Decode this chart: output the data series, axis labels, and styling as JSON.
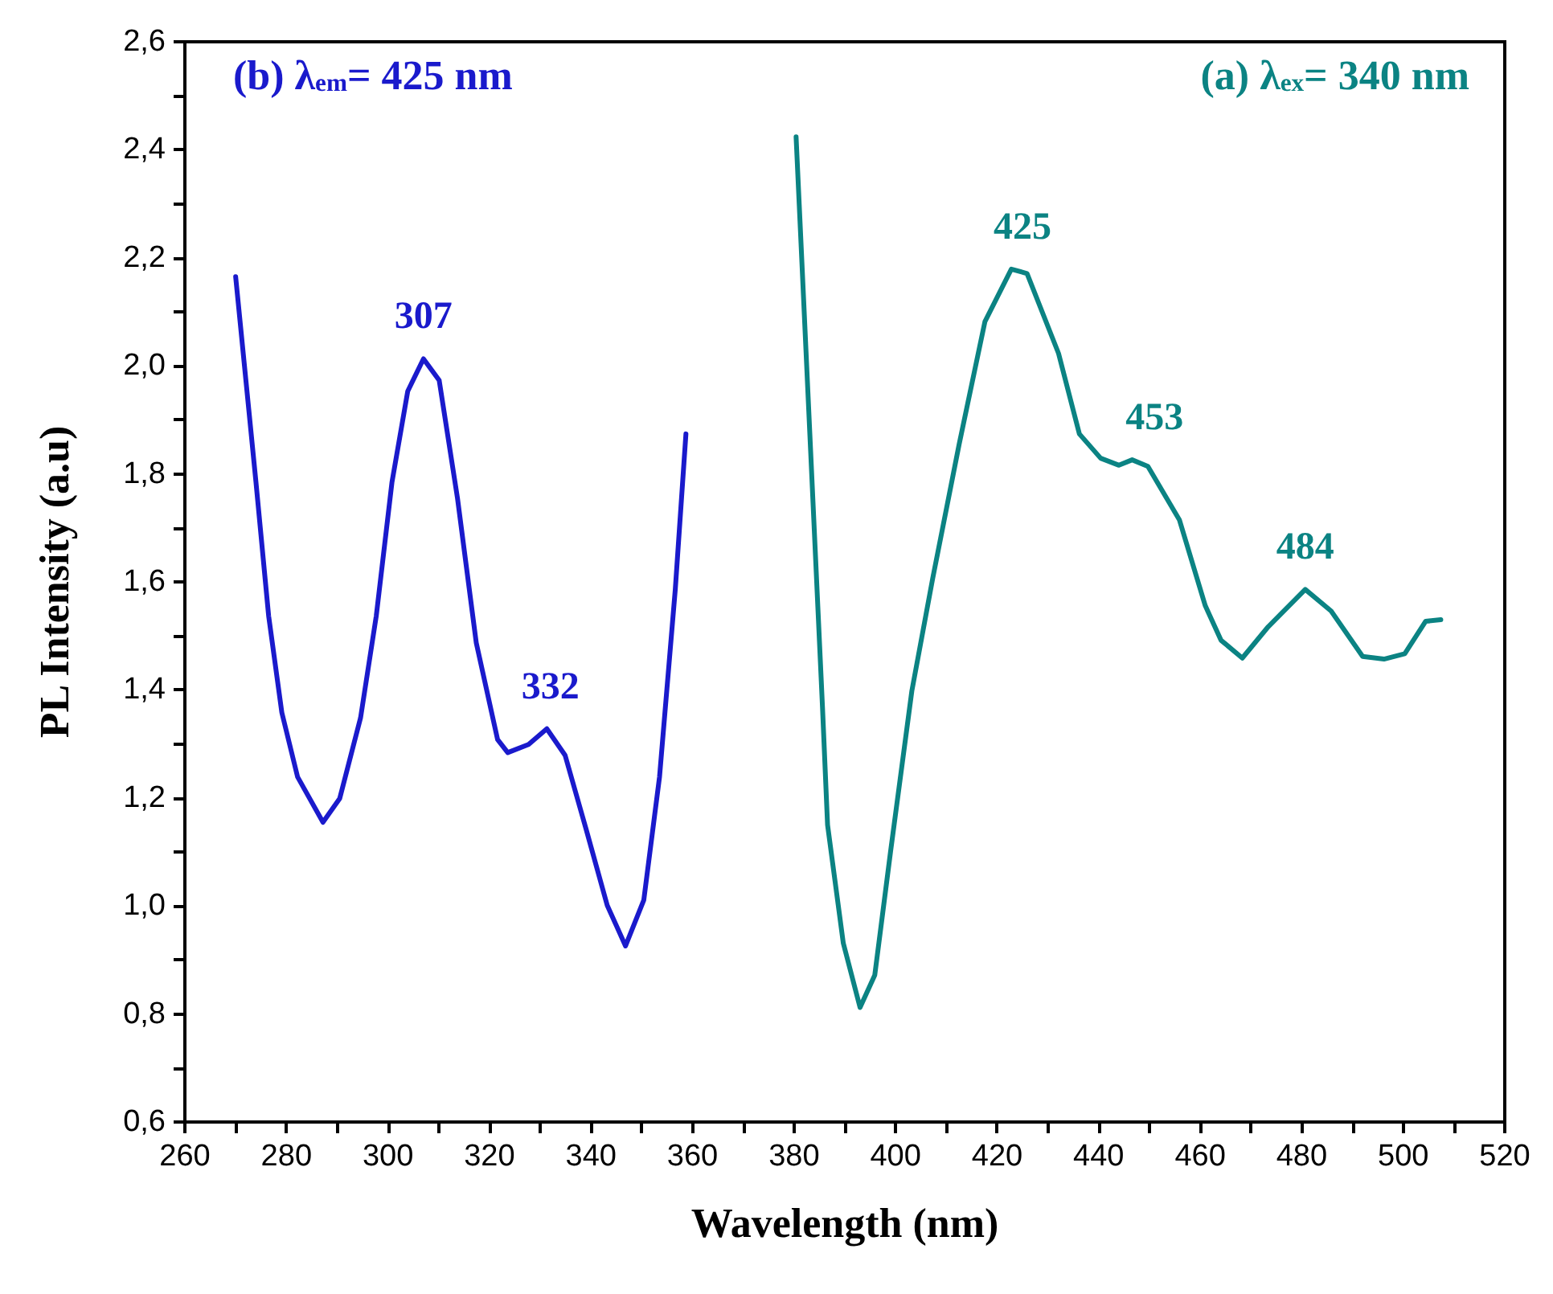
{
  "chart_data": {
    "type": "line",
    "xlabel": "Wavelength (nm)",
    "ylabel": "PL Intensity (a.u)",
    "xlim": [
      260,
      520
    ],
    "xticks": [
      260,
      {
        "value": 270,
        "label": null
      },
      280,
      {
        "value": 290,
        "label": null
      },
      300,
      {
        "value": 310,
        "label": null
      },
      320,
      {
        "value": 330,
        "label": null
      },
      340,
      {
        "value": 350,
        "label": null
      },
      360,
      {
        "value": 370,
        "label": null
      },
      380,
      {
        "value": 390,
        "label": null
      },
      400,
      {
        "value": 410,
        "label": null
      },
      420,
      {
        "value": 430,
        "label": null
      },
      440,
      {
        "value": 450,
        "label": null
      },
      460,
      {
        "value": 470,
        "label": null
      },
      480,
      {
        "value": 490,
        "label": null
      },
      500,
      {
        "value": 510,
        "label": null
      },
      520
    ],
    "ylim": [
      0.6,
      2.6
    ],
    "yticks": [
      {
        "value": 0.6,
        "label": "0,6"
      },
      {
        "value": 0.7,
        "label": null
      },
      {
        "value": 0.8,
        "label": "0,8"
      },
      {
        "value": 0.9,
        "label": null
      },
      {
        "value": 1.0,
        "label": "1,0"
      },
      {
        "value": 1.1,
        "label": null
      },
      {
        "value": 1.2,
        "label": "1,2"
      },
      {
        "value": 1.3,
        "label": null
      },
      {
        "value": 1.4,
        "label": "1,4"
      },
      {
        "value": 1.5,
        "label": null
      },
      {
        "value": 1.6,
        "label": "1,6"
      },
      {
        "value": 1.7,
        "label": null
      },
      {
        "value": 1.8,
        "label": "1,8"
      },
      {
        "value": 1.9,
        "label": null
      },
      {
        "value": 2.0,
        "label": "2,0"
      },
      {
        "value": 2.1,
        "label": null
      },
      {
        "value": 2.2,
        "label": "2,2"
      },
      {
        "value": 2.3,
        "label": null
      },
      {
        "value": 2.4,
        "label": "2,4"
      },
      {
        "value": 2.5,
        "label": null
      },
      {
        "value": 2.6,
        "label": "2,6"
      }
    ],
    "grid": false,
    "legend": false,
    "marker": "none",
    "line_style": "solid",
    "series": [
      {
        "name": "(b) λ$_{em}$= 425 nm",
        "color": "#1a1acc",
        "x": [
          270,
          274,
          276.5,
          279.1,
          282.2,
          287.2,
          290.5,
          294.6,
          297.7,
          300.8,
          303.9,
          307,
          310.1,
          313.7,
          317.4,
          321.6,
          323.6,
          327.7,
          331.3,
          334.9,
          339.1,
          343.2,
          346.8,
          350.4,
          353.5,
          356.6,
          358.7
        ],
        "values": [
          2.165,
          1.785,
          1.537,
          1.358,
          1.239,
          1.155,
          1.199,
          1.348,
          1.537,
          1.785,
          1.953,
          2.013,
          1.973,
          1.755,
          1.487,
          1.308,
          1.284,
          1.299,
          1.328,
          1.279,
          1.14,
          1.001,
          0.926,
          1.011,
          1.239,
          1.586,
          1.874
        ]
      },
      {
        "name": "(a) λ$_{ex}$= 340 nm",
        "color": "#0b8383",
        "x": [
          380.4,
          385.6,
          386.6,
          389.7,
          393,
          395.9,
          399,
          403.2,
          407.3,
          412.5,
          417.6,
          422.8,
          425.9,
          432.1,
          436.2,
          440.4,
          444,
          446.6,
          449.7,
          455.9,
          461,
          464.1,
          468.3,
          473.4,
          480.7,
          485.8,
          492,
          496.2,
          500.3,
          504.4,
          507.4
        ],
        "values": [
          2.424,
          1.368,
          1.15,
          0.931,
          0.812,
          0.872,
          1.1,
          1.398,
          1.606,
          1.854,
          2.082,
          2.179,
          2.171,
          2.023,
          1.874,
          1.829,
          1.816,
          1.826,
          1.814,
          1.715,
          1.556,
          1.492,
          1.459,
          1.517,
          1.586,
          1.546,
          1.462,
          1.457,
          1.467,
          1.527,
          1.53
        ]
      }
    ],
    "annotations": [
      {
        "text": "307",
        "x": 307,
        "y": 2.013
      },
      {
        "text": "332",
        "x": 332,
        "y": 1.328
      },
      {
        "text": "425",
        "x": 425,
        "y": 2.179
      },
      {
        "text": "453",
        "x": 451,
        "y": 1.826
      },
      {
        "text": "484",
        "x": 480.7,
        "y": 1.586
      }
    ]
  }
}
